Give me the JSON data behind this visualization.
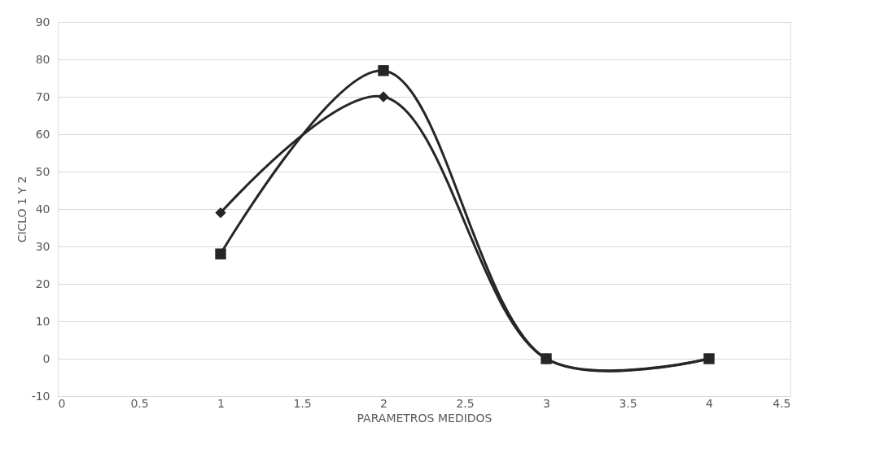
{
  "chart_data": {
    "type": "line",
    "xlabel": "PARAMETROS MEDIDOS",
    "ylabel": "CICLO 1 Y 2",
    "x": [
      1,
      2,
      3,
      4
    ],
    "series": [
      {
        "color": "#262626",
        "values": [
          39,
          70,
          0,
          0
        ],
        "marker": "diamond"
      },
      {
        "color": "#262626",
        "values": [
          28,
          77,
          0,
          0
        ],
        "marker": "square"
      }
    ],
    "xlim": [
      0,
      4.5
    ],
    "xticks": [
      0,
      0.5,
      1,
      1.5,
      2,
      2.5,
      3,
      3.5,
      4,
      4.5
    ],
    "ylim": [
      -10,
      90
    ],
    "yticks": [
      -10,
      0,
      10,
      20,
      30,
      40,
      50,
      60,
      70,
      80,
      90
    ],
    "grid": "y",
    "line_style": "solid"
  }
}
